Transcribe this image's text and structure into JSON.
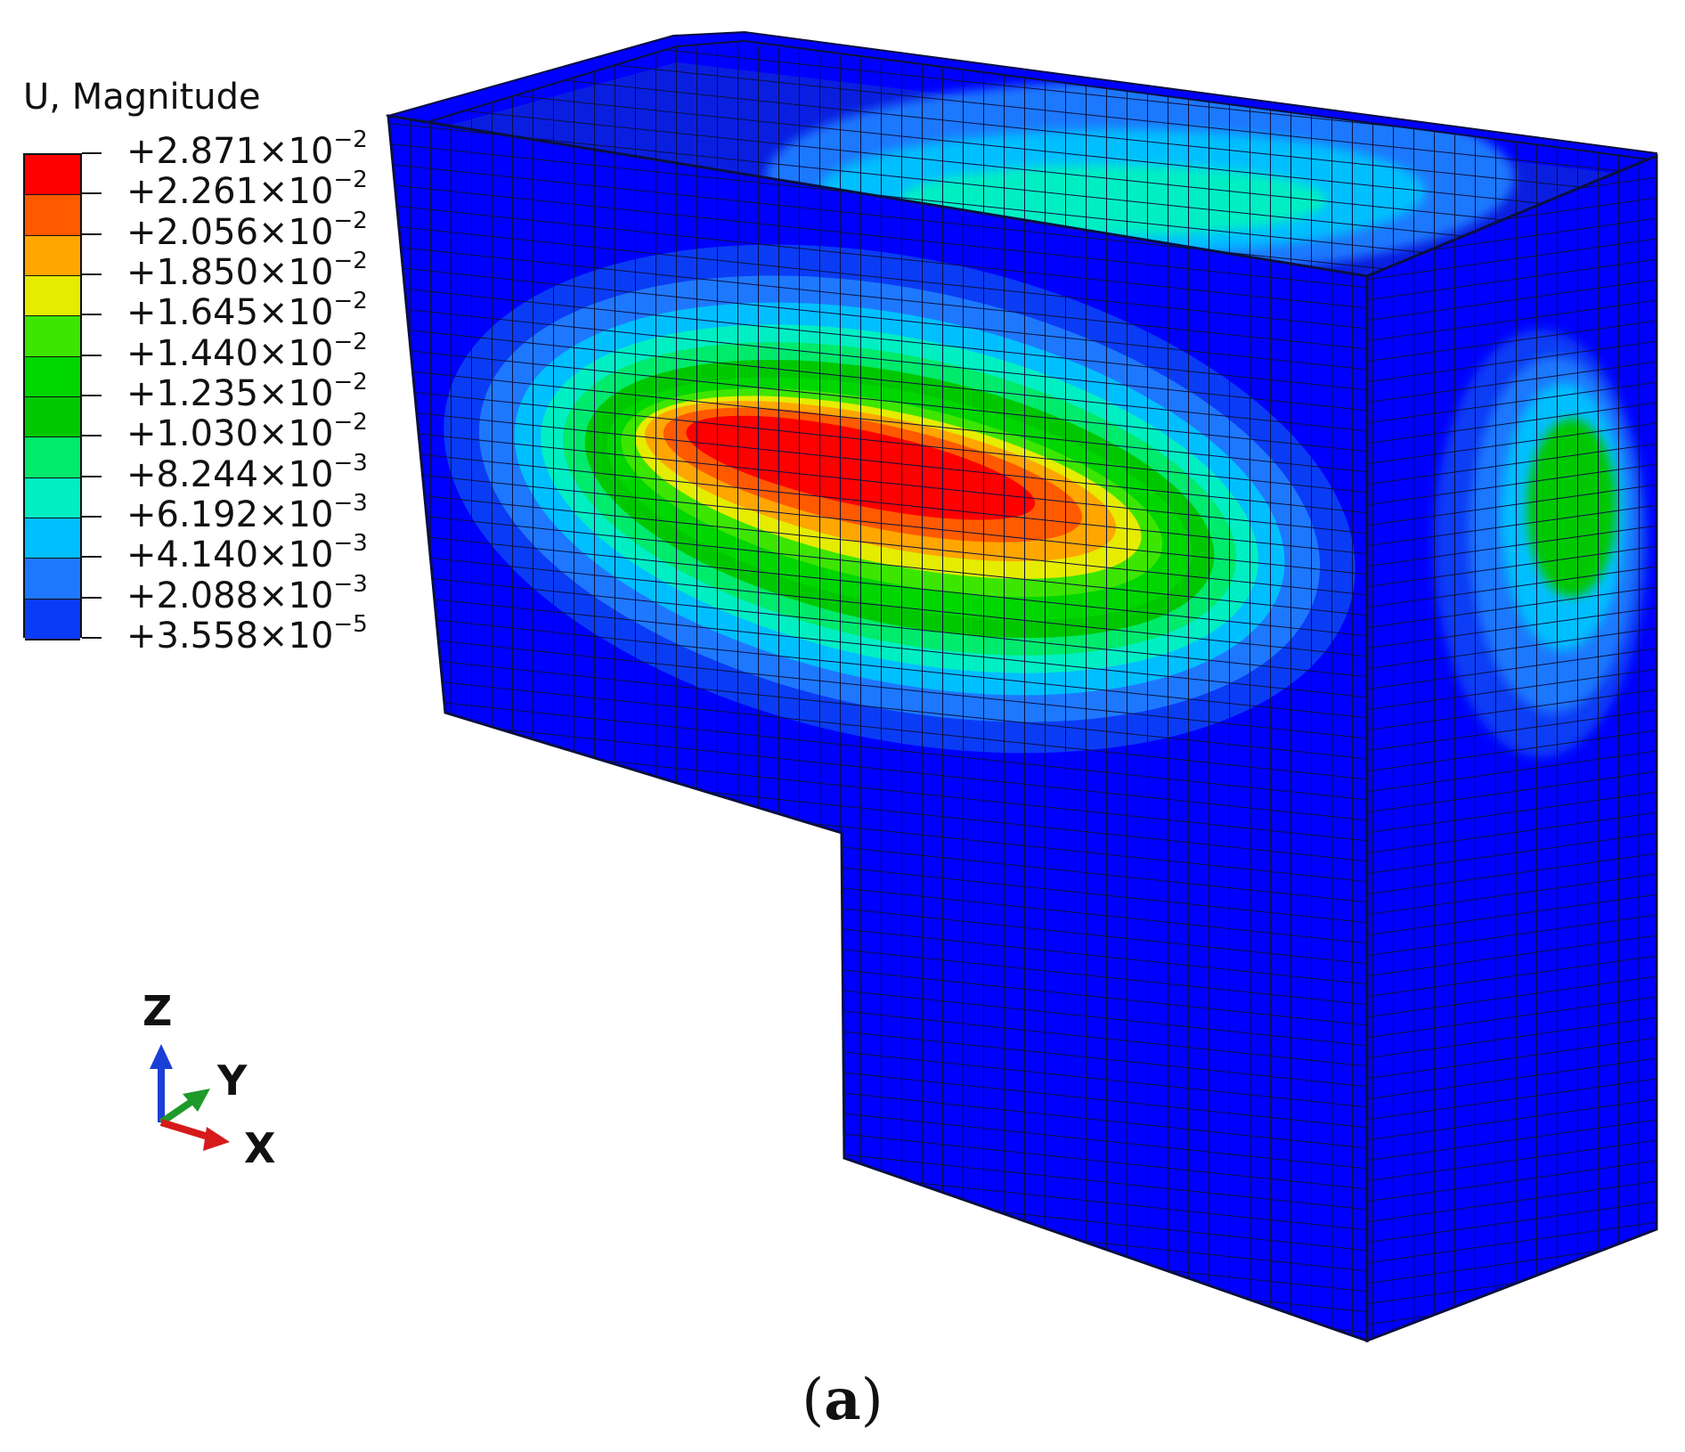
{
  "legend": {
    "title": "U, Magnitude",
    "entries": [
      {
        "mantissa": "+2.871",
        "exponent": "-2",
        "color": "#ff0000"
      },
      {
        "mantissa": "+2.261",
        "exponent": "-2",
        "color": "#ff5a00"
      },
      {
        "mantissa": "+2.056",
        "exponent": "-2",
        "color": "#ffa600"
      },
      {
        "mantissa": "+1.850",
        "exponent": "-2",
        "color": "#e5ec00"
      },
      {
        "mantissa": "+1.645",
        "exponent": "-2",
        "color": "#3ce600"
      },
      {
        "mantissa": "+1.440",
        "exponent": "-2",
        "color": "#00d600"
      },
      {
        "mantissa": "+1.235",
        "exponent": "-2",
        "color": "#00c800"
      },
      {
        "mantissa": "+1.030",
        "exponent": "-2",
        "color": "#00ea6c"
      },
      {
        "mantissa": "+8.244",
        "exponent": "-3",
        "color": "#00efc2"
      },
      {
        "mantissa": "+6.192",
        "exponent": "-3",
        "color": "#00bfff"
      },
      {
        "mantissa": "+4.140",
        "exponent": "-3",
        "color": "#1e78ff"
      },
      {
        "mantissa": "+2.088",
        "exponent": "-3",
        "color": "#0a3cf5"
      },
      {
        "mantissa": "+3.558",
        "exponent": "-5",
        "color": "#0000ff"
      }
    ],
    "times_sign": "×10"
  },
  "triad": {
    "z_label": "Z",
    "y_label": "Y",
    "x_label": "X",
    "colors": {
      "z": "#1a3fd6",
      "y": "#1e9a2a",
      "x": "#d61a1a"
    }
  },
  "caption": {
    "open": "(",
    "letter": "a",
    "close": ")"
  },
  "colors": {
    "mesh_base": "#0000ff",
    "mesh_line": "#111133"
  }
}
